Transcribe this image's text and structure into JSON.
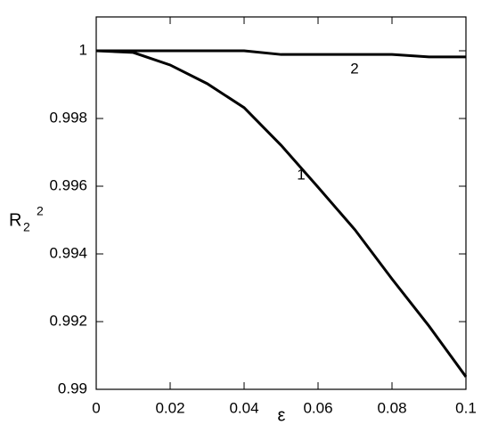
{
  "chart_data": {
    "type": "line",
    "ylabel": "R",
    "ylabel_sub": "2",
    "ylabel_sup": "2",
    "xlabel": "ε",
    "x": [
      0,
      0.01,
      0.02,
      0.03,
      0.04,
      0.05,
      0.06,
      0.07,
      0.08,
      0.09,
      0.1
    ],
    "series": [
      {
        "name": "1",
        "color": "#000000",
        "values": [
          1,
          0.99995,
          0.99958,
          0.99903,
          0.99832,
          0.99721,
          0.99597,
          0.99471,
          0.99326,
          0.99187,
          0.99037
        ]
      },
      {
        "name": "2",
        "color": "#000000",
        "values": [
          1,
          1,
          1,
          1,
          1,
          0.99989,
          0.99989,
          0.99989,
          0.99989,
          0.99982,
          0.99982
        ]
      }
    ],
    "xlim": [
      0,
      0.1
    ],
    "xticks": [
      0,
      0.02,
      0.04,
      0.06,
      0.08,
      0.1
    ],
    "ylim": [
      0.99,
      1.001
    ],
    "yticks": [
      0.99,
      0.992,
      0.994,
      0.996,
      0.998,
      1
    ],
    "grid": false
  }
}
